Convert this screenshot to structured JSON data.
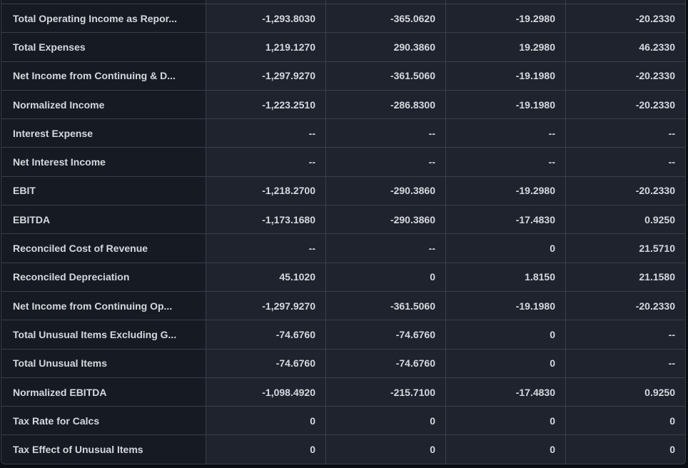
{
  "table": {
    "description": "Financial statement metrics table, dark theme, 4 period columns",
    "empty_value": "--",
    "colors": {
      "page_bg": "#0a0d13",
      "label_cell_bg": "#161a22",
      "value_cell_bg": "#1f232d",
      "divider": "#3a3f4b",
      "text": "#d5d8de"
    },
    "rows": [
      {
        "label": "Total Operating Income as Repor...",
        "values": [
          "-1,293.8030",
          "-365.0620",
          "-19.2980",
          "-20.2330"
        ]
      },
      {
        "label": "Total Expenses",
        "values": [
          "1,219.1270",
          "290.3860",
          "19.2980",
          "46.2330"
        ]
      },
      {
        "label": "Net Income from Continuing & D...",
        "values": [
          "-1,297.9270",
          "-361.5060",
          "-19.1980",
          "-20.2330"
        ]
      },
      {
        "label": "Normalized Income",
        "values": [
          "-1,223.2510",
          "-286.8300",
          "-19.1980",
          "-20.2330"
        ]
      },
      {
        "label": "Interest Expense",
        "values": [
          "--",
          "--",
          "--",
          "--"
        ]
      },
      {
        "label": "Net Interest Income",
        "values": [
          "--",
          "--",
          "--",
          "--"
        ]
      },
      {
        "label": "EBIT",
        "values": [
          "-1,218.2700",
          "-290.3860",
          "-19.2980",
          "-20.2330"
        ]
      },
      {
        "label": "EBITDA",
        "values": [
          "-1,173.1680",
          "-290.3860",
          "-17.4830",
          "0.9250"
        ]
      },
      {
        "label": "Reconciled Cost of Revenue",
        "values": [
          "--",
          "--",
          "0",
          "21.5710"
        ]
      },
      {
        "label": "Reconciled Depreciation",
        "values": [
          "45.1020",
          "0",
          "1.8150",
          "21.1580"
        ]
      },
      {
        "label": "Net Income from Continuing Op...",
        "values": [
          "-1,297.9270",
          "-361.5060",
          "-19.1980",
          "-20.2330"
        ]
      },
      {
        "label": "Total Unusual Items Excluding G...",
        "values": [
          "-74.6760",
          "-74.6760",
          "0",
          "--"
        ]
      },
      {
        "label": "Total Unusual Items",
        "values": [
          "-74.6760",
          "-74.6760",
          "0",
          "--"
        ]
      },
      {
        "label": "Normalized EBITDA",
        "values": [
          "-1,098.4920",
          "-215.7100",
          "-17.4830",
          "0.9250"
        ]
      },
      {
        "label": "Tax Rate for Calcs",
        "values": [
          "0",
          "0",
          "0",
          "0"
        ]
      },
      {
        "label": "Tax Effect of Unusual Items",
        "values": [
          "0",
          "0",
          "0",
          "0"
        ]
      }
    ]
  }
}
